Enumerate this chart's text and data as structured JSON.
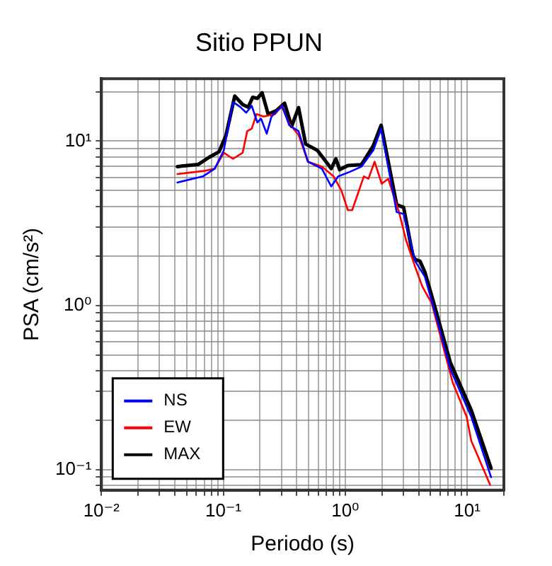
{
  "chart_data": {
    "type": "line",
    "title": "Sitio PPUN",
    "xlabel": "Periodo (s)",
    "ylabel": "PSA (cm/s²)",
    "log": "xy",
    "grid": true,
    "legend": "bottom left",
    "marker": "none",
    "line_style": "solid",
    "xlim": [
      0.01,
      20
    ],
    "ylim": [
      0.075,
      24
    ],
    "xticks": [
      {
        "value": 0.01,
        "label": "10⁻²"
      },
      {
        "value": 0.02,
        "label": null
      },
      {
        "value": 0.03,
        "label": null
      },
      {
        "value": 0.04,
        "label": null
      },
      {
        "value": 0.05,
        "label": null
      },
      {
        "value": 0.06,
        "label": null
      },
      {
        "value": 0.07,
        "label": null
      },
      {
        "value": 0.08,
        "label": null
      },
      {
        "value": 0.09,
        "label": null
      },
      {
        "value": 0.1,
        "label": "10⁻¹"
      },
      {
        "value": 0.2,
        "label": null
      },
      {
        "value": 0.3,
        "label": null
      },
      {
        "value": 0.4,
        "label": null
      },
      {
        "value": 0.5,
        "label": null
      },
      {
        "value": 0.6,
        "label": null
      },
      {
        "value": 0.7,
        "label": null
      },
      {
        "value": 0.8,
        "label": null
      },
      {
        "value": 0.9,
        "label": null
      },
      {
        "value": 1,
        "label": "10⁰"
      },
      {
        "value": 2,
        "label": null
      },
      {
        "value": 3,
        "label": null
      },
      {
        "value": 4,
        "label": null
      },
      {
        "value": 5,
        "label": null
      },
      {
        "value": 6,
        "label": null
      },
      {
        "value": 7,
        "label": null
      },
      {
        "value": 8,
        "label": null
      },
      {
        "value": 9,
        "label": null
      },
      {
        "value": 10,
        "label": "10¹"
      },
      {
        "value": 20,
        "label": null
      }
    ],
    "yticks": [
      {
        "value": 0.08,
        "label": null
      },
      {
        "value": 0.09,
        "label": null
      },
      {
        "value": 0.1,
        "label": "10⁻¹"
      },
      {
        "value": 0.2,
        "label": null
      },
      {
        "value": 0.3,
        "label": null
      },
      {
        "value": 0.4,
        "label": null
      },
      {
        "value": 0.5,
        "label": null
      },
      {
        "value": 0.6,
        "label": null
      },
      {
        "value": 0.7,
        "label": null
      },
      {
        "value": 0.8,
        "label": null
      },
      {
        "value": 0.9,
        "label": null
      },
      {
        "value": 1,
        "label": "10⁰"
      },
      {
        "value": 2,
        "label": null
      },
      {
        "value": 3,
        "label": null
      },
      {
        "value": 4,
        "label": null
      },
      {
        "value": 5,
        "label": null
      },
      {
        "value": 6,
        "label": null
      },
      {
        "value": 7,
        "label": null
      },
      {
        "value": 8,
        "label": null
      },
      {
        "value": 9,
        "label": null
      },
      {
        "value": 10,
        "label": "10¹"
      },
      {
        "value": 20,
        "label": null
      }
    ],
    "series": [
      {
        "name": "NS",
        "color": "#0000ff",
        "x": [
          0.042,
          0.068,
          0.085,
          0.101,
          0.12,
          0.137,
          0.154,
          0.171,
          0.19,
          0.204,
          0.227,
          0.248,
          0.304,
          0.347,
          0.414,
          0.494,
          0.643,
          0.767,
          0.876,
          1.09,
          1.36,
          1.7,
          1.97,
          2.64,
          3.01,
          3.76,
          4.49,
          5.94,
          7.27,
          10.8,
          15.7
        ],
        "values": [
          5.6,
          6.1,
          6.8,
          8.8,
          17.3,
          16.2,
          14.9,
          16.4,
          13,
          13.7,
          11.1,
          14.1,
          16.4,
          12.5,
          11.5,
          7.5,
          6.8,
          5.3,
          6.1,
          6.5,
          7,
          8.8,
          11.9,
          3.7,
          3.6,
          1.85,
          1.5,
          0.72,
          0.41,
          0.21,
          0.09
        ]
      },
      {
        "name": "EW",
        "color": "#ff0000",
        "x": [
          0.042,
          0.071,
          0.085,
          0.101,
          0.12,
          0.144,
          0.157,
          0.171,
          0.187,
          0.214,
          0.266,
          0.3,
          0.347,
          0.414,
          0.494,
          0.643,
          0.803,
          0.93,
          1.05,
          1.14,
          1.42,
          1.55,
          1.74,
          1.99,
          2.25,
          2.76,
          3.15,
          3.76,
          4.29,
          5.12,
          7.6,
          9.9,
          10.8,
          15.4
        ],
        "values": [
          6.3,
          6.6,
          6.8,
          8.5,
          7.8,
          8.5,
          11.5,
          11.9,
          14.6,
          14.1,
          14.6,
          16.4,
          12.8,
          10.9,
          7.5,
          7,
          6.1,
          5,
          3.8,
          3.8,
          6.1,
          5.9,
          7.5,
          5.5,
          5.9,
          3.7,
          2.5,
          1.7,
          1.3,
          1.03,
          0.34,
          0.21,
          0.15,
          0.081
        ]
      },
      {
        "name": "MAX",
        "color": "#000000",
        "x": [
          0.042,
          0.062,
          0.077,
          0.092,
          0.105,
          0.124,
          0.144,
          0.16,
          0.174,
          0.19,
          0.208,
          0.233,
          0.271,
          0.318,
          0.363,
          0.414,
          0.473,
          0.589,
          0.767,
          0.838,
          0.9,
          1.05,
          1.36,
          1.7,
          1.97,
          2.64,
          3.01,
          3.59,
          3.76,
          4.1,
          4.49,
          5.25,
          5.94,
          7.27,
          10.8,
          15.7
        ],
        "values": [
          7,
          7.2,
          8,
          8.6,
          10.8,
          18.8,
          16.7,
          16.1,
          18.5,
          18.2,
          19.7,
          14.6,
          15.3,
          17,
          12.3,
          16,
          9.6,
          8.8,
          6.8,
          7.8,
          6.7,
          7.1,
          7.2,
          9.4,
          12.5,
          4.1,
          3.95,
          2,
          1.9,
          1.86,
          1.6,
          1.07,
          0.77,
          0.45,
          0.23,
          0.102
        ]
      }
    ]
  }
}
